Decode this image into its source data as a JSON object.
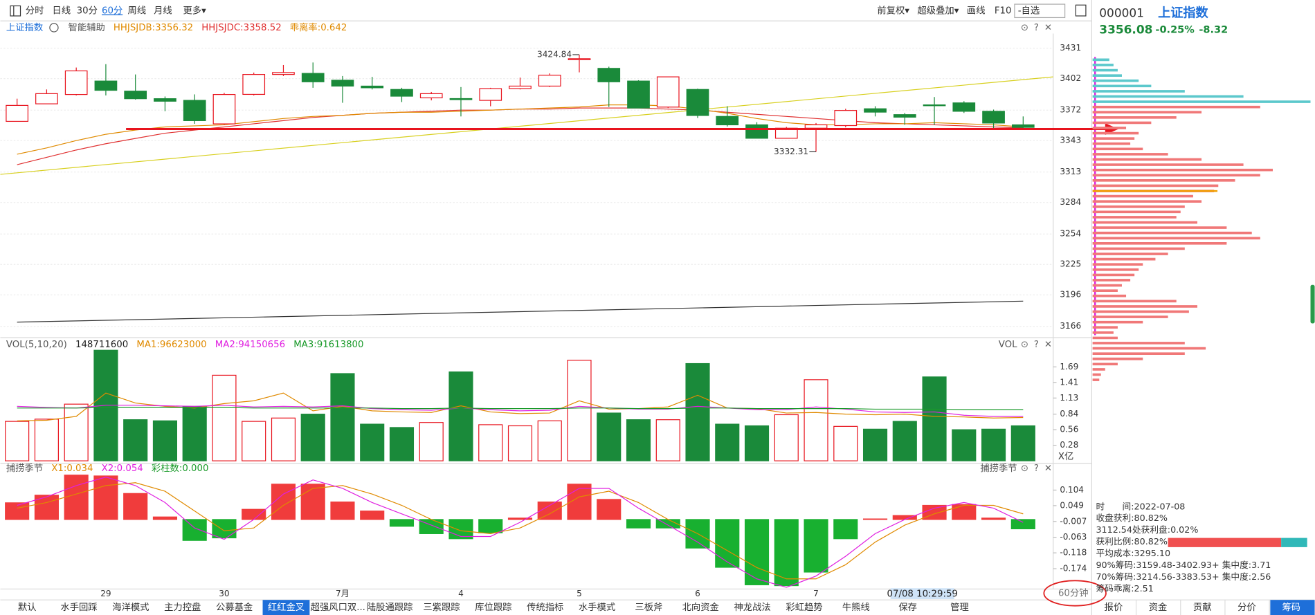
{
  "toolbar": {
    "left": [
      {
        "text": "分时"
      },
      {
        "text": "日线"
      },
      {
        "text": "30分"
      },
      {
        "text": "60分",
        "active": true
      },
      {
        "text": "周线"
      },
      {
        "text": "月线"
      },
      {
        "text": "更多▾"
      }
    ],
    "right": [
      "前复权▾",
      "超级叠加▾",
      "画线",
      "F10",
      "-自选"
    ]
  },
  "chart_data": [
    {
      "type": "candlestick",
      "header": [
        {
          "text": "上证指数",
          "color": "#1e6fd9"
        },
        {
          "text": "智能辅助",
          "color": "#555555"
        },
        {
          "text": "HHJSJDB:3356.32",
          "color": "#e08a00"
        },
        {
          "text": "HHJSJDC:3358.52",
          "color": "#e03030"
        },
        {
          "text": "乖离率:0.642",
          "color": "#e08a00"
        }
      ],
      "categories": [
        null,
        null,
        null,
        "29",
        null,
        null,
        null,
        "30",
        null,
        null,
        null,
        "7月",
        null,
        null,
        null,
        "4",
        null,
        null,
        null,
        "5",
        null,
        null,
        null,
        "6",
        null,
        null,
        null,
        "7",
        null,
        null,
        null,
        null,
        null,
        null,
        null
      ],
      "cursor_label": "07/08 10:29:59",
      "up_color": "#e8141e",
      "down_color": "#1a8a3a",
      "candles": [
        {
          "o": 3361.3,
          "h": 3382.9,
          "l": 3361,
          "c": 3376.5
        },
        {
          "o": 3378,
          "h": 3391.7,
          "l": 3378,
          "c": 3387.7
        },
        {
          "o": 3386.9,
          "h": 3412.6,
          "l": 3386,
          "c": 3409.4
        },
        {
          "o": 3399.7,
          "h": 3415.8,
          "l": 3386,
          "c": 3390.9
        },
        {
          "o": 3390.1,
          "h": 3406,
          "l": 3382,
          "c": 3382.9
        },
        {
          "o": 3382.9,
          "h": 3385,
          "l": 3371,
          "c": 3380.5
        },
        {
          "o": 3381.3,
          "h": 3387,
          "l": 3359,
          "c": 3362
        },
        {
          "o": 3358.9,
          "h": 3388.5,
          "l": 3358,
          "c": 3386.9
        },
        {
          "o": 3387,
          "h": 3407.8,
          "l": 3386,
          "c": 3406
        },
        {
          "o": 3406,
          "h": 3415,
          "l": 3404.5,
          "c": 3407.8
        },
        {
          "o": 3407,
          "h": 3417.4,
          "l": 3393.3,
          "c": 3399
        },
        {
          "o": 3400.5,
          "h": 3404.5,
          "l": 3379,
          "c": 3394.9
        },
        {
          "o": 3394.9,
          "h": 3403.7,
          "l": 3391.7,
          "c": 3393.3
        },
        {
          "o": 3391.7,
          "h": 3393.3,
          "l": 3379.7,
          "c": 3385.3
        },
        {
          "o": 3383.7,
          "h": 3389.3,
          "l": 3381.3,
          "c": 3387.7
        },
        {
          "o": 3383,
          "h": 3394,
          "l": 3366,
          "c": 3382
        },
        {
          "o": 3381.3,
          "h": 3393.3,
          "l": 3375.7,
          "c": 3392.5
        },
        {
          "o": 3392.5,
          "h": 3403,
          "l": 3391.7,
          "c": 3394.9
        },
        {
          "o": 3394.9,
          "h": 3407,
          "l": 3394,
          "c": 3405.3
        },
        {
          "o": 3420,
          "h": 3424.84,
          "l": 3408,
          "c": 3421
        },
        {
          "o": 3411.8,
          "h": 3413.4,
          "l": 3375,
          "c": 3399
        },
        {
          "o": 3399.7,
          "h": 3400.5,
          "l": 3374,
          "c": 3374
        },
        {
          "o": 3374.9,
          "h": 3404,
          "l": 3374,
          "c": 3403.7
        },
        {
          "o": 3391.7,
          "h": 3392.5,
          "l": 3364.5,
          "c": 3366.9
        },
        {
          "o": 3366,
          "h": 3375.7,
          "l": 3356.4,
          "c": 3358
        },
        {
          "o": 3358,
          "h": 3360.5,
          "l": 3345.2,
          "c": 3345.2
        },
        {
          "o": 3345.2,
          "h": 3356,
          "l": 3345,
          "c": 3354.8
        },
        {
          "o": 3354.8,
          "h": 3359.7,
          "l": 3332.31,
          "c": 3358
        },
        {
          "o": 3357.3,
          "h": 3373.3,
          "l": 3355.6,
          "c": 3371.7
        },
        {
          "o": 3373.3,
          "h": 3375.7,
          "l": 3366,
          "c": 3370.1
        },
        {
          "o": 3367.7,
          "h": 3369.3,
          "l": 3358,
          "c": 3365.3
        },
        {
          "o": 3377,
          "h": 3384.5,
          "l": 3358,
          "c": 3376.5
        },
        {
          "o": 3378.9,
          "h": 3380.5,
          "l": 3369.3,
          "c": 3370.9
        },
        {
          "o": 3370.9,
          "h": 3372.5,
          "l": 3354.8,
          "c": 3359.7
        },
        {
          "o": 3358,
          "h": 3366,
          "l": 3354,
          "c": 3355.6
        }
      ],
      "series": [
        {
          "color": "#e03030",
          "values": [
            3320,
            3327,
            3334,
            3340,
            3345,
            3350,
            3353,
            3356,
            3359,
            3362,
            3365,
            3367,
            3369,
            3370,
            3371,
            3372,
            3372,
            3373,
            3373,
            3374,
            3374,
            3374,
            3373,
            3372,
            3370,
            3368,
            3366,
            3364,
            3362,
            3360,
            3359,
            3358,
            3357,
            3356,
            3355
          ]
        },
        {
          "color": "#e08a00",
          "values": [
            3330,
            3336,
            3343,
            3349,
            3353,
            3356,
            3357,
            3358,
            3361,
            3364,
            3366,
            3367,
            3369,
            3370,
            3370,
            3371,
            3372,
            3373,
            3374,
            3375,
            3377,
            3377,
            3376,
            3373,
            3369,
            3364,
            3360,
            3358,
            3358,
            3359,
            3359,
            3360,
            3359,
            3358,
            3356
          ]
        }
      ],
      "trendlines": [
        {
          "color": "#d8d020",
          "values": [
            3310.8,
            3403.7
          ],
          "span": "panel"
        },
        {
          "color": "#333333",
          "values": [
            3170,
            3190
          ],
          "span": "candles"
        }
      ],
      "price_line": {
        "value": 3354,
        "color": "#e8141e"
      },
      "ylim": [
        3156,
        3445
      ],
      "yticks": [
        3431,
        3402,
        3372,
        3343,
        3313,
        3284,
        3254,
        3225,
        3196,
        3166
      ],
      "grid": true
    },
    {
      "type": "bar",
      "header": [
        {
          "text": "VOL(5,10,20)",
          "color": "#555555"
        },
        {
          "text": "148711600",
          "color": "#222222"
        },
        {
          "text": "MA1:96623000",
          "color": "#e08a00"
        },
        {
          "text": "MA2:94150656",
          "color": "#e020e0"
        },
        {
          "text": "MA3:91613800",
          "color": "#1a9a2a"
        }
      ],
      "side_label": "VOL",
      "unit": "X亿",
      "color_by": "candles",
      "values": [
        0.71,
        0.75,
        1.02,
        1.99,
        0.74,
        0.72,
        0.98,
        1.54,
        0.71,
        0.77,
        0.84,
        1.57,
        0.66,
        0.6,
        0.69,
        1.6,
        0.65,
        0.63,
        0.72,
        1.81,
        0.86,
        0.74,
        0.74,
        1.75,
        0.66,
        0.63,
        0.83,
        1.46,
        0.62,
        0.57,
        0.71,
        1.51,
        0.56,
        0.57,
        0.63
      ],
      "series": [
        {
          "color": "#e08a00",
          "values": [
            0.72,
            0.73,
            0.8,
            1.22,
            1.04,
            0.98,
            0.95,
            1.03,
            1.08,
            1.22,
            0.9,
            0.98,
            0.9,
            0.88,
            0.87,
            0.99,
            0.88,
            0.85,
            0.86,
            1.08,
            0.93,
            0.94,
            0.97,
            1.18,
            0.95,
            0.94,
            0.86,
            0.87,
            0.84,
            0.83,
            0.84,
            0.8,
            0.79,
            0.77,
            0.78
          ]
        },
        {
          "color": "#e020e0",
          "values": [
            0.98,
            0.96,
            0.95,
            1,
            1,
            0.99,
            0.98,
            1,
            0.97,
            0.98,
            0.97,
            0.99,
            0.94,
            0.92,
            0.91,
            0.95,
            0.92,
            0.9,
            0.91,
            0.98,
            0.95,
            0.93,
            0.93,
            0.98,
            0.95,
            0.92,
            0.92,
            0.97,
            0.93,
            0.88,
            0.87,
            0.88,
            0.82,
            0.8,
            0.8
          ]
        },
        {
          "color": "#1a9a2a",
          "values": [
            0.95,
            0.95,
            0.95,
            0.96,
            0.96,
            0.96,
            0.96,
            0.96,
            0.95,
            0.95,
            0.95,
            0.95,
            0.95,
            0.94,
            0.94,
            0.95,
            0.94,
            0.94,
            0.94,
            0.95,
            0.95,
            0.94,
            0.94,
            0.95,
            0.95,
            0.94,
            0.94,
            0.94,
            0.94,
            0.93,
            0.93,
            0.93,
            0.92,
            0.92,
            0.92
          ]
        }
      ],
      "ylim": [
        0,
        1.99
      ],
      "yticks": [
        1.69,
        1.41,
        1.13,
        0.84,
        0.56,
        0.28
      ]
    },
    {
      "type": "bar",
      "header": [
        {
          "text": "捕捞季节",
          "color": "#555555"
        },
        {
          "text": "X1:0.034",
          "color": "#e08a00"
        },
        {
          "text": "X2:0.054",
          "color": "#e020e0"
        },
        {
          "text": "彩柱数:0.000",
          "color": "#1a9a2a"
        }
      ],
      "side_label": "捕捞季节",
      "color_by": "sign",
      "up_color": "#f03c3c",
      "down_color": "#18b030",
      "values": [
        0.059,
        0.086,
        0.157,
        0.154,
        0.092,
        0.009,
        -0.074,
        -0.065,
        0.036,
        0.125,
        0.125,
        0.062,
        0.03,
        -0.024,
        -0.05,
        -0.068,
        -0.047,
        0.005,
        0.062,
        0.125,
        0.071,
        -0.03,
        -0.03,
        -0.101,
        -0.169,
        -0.231,
        -0.234,
        -0.186,
        -0.068,
        0.002,
        0.014,
        0.05,
        0.053,
        0.005,
        -0.033
      ],
      "series": [
        {
          "color": "#e08a00",
          "values": [
            0.04,
            0.06,
            0.09,
            0.12,
            0.13,
            0.1,
            0.03,
            -0.04,
            -0.03,
            0.05,
            0.11,
            0.12,
            0.09,
            0.05,
            0,
            -0.04,
            -0.05,
            -0.03,
            0.02,
            0.08,
            0.1,
            0.06,
            0,
            -0.05,
            -0.11,
            -0.17,
            -0.21,
            -0.21,
            -0.16,
            -0.08,
            -0.02,
            0.02,
            0.05,
            0.05,
            0.02
          ]
        },
        {
          "color": "#e020e0",
          "values": [
            0.05,
            0.08,
            0.12,
            0.15,
            0.12,
            0.06,
            -0.03,
            -0.07,
            0,
            0.09,
            0.14,
            0.11,
            0.06,
            0.02,
            -0.02,
            -0.06,
            -0.06,
            -0.01,
            0.05,
            0.11,
            0.11,
            0.04,
            -0.02,
            -0.08,
            -0.15,
            -0.21,
            -0.24,
            -0.2,
            -0.13,
            -0.05,
            0,
            0.04,
            0.06,
            0.04,
            -0.01
          ]
        }
      ],
      "ylim": [
        -0.24,
        0.163
      ],
      "yticks": [
        0.104,
        0.049,
        -0.007,
        -0.063,
        -0.118,
        -0.174
      ]
    }
  ],
  "chips": {
    "series": [
      {
        "color": "#5cc8cc",
        "prices": [
          3420,
          3415,
          3410,
          3405,
          3400,
          3395,
          3390,
          3385,
          3380
        ],
        "values": [
          20,
          25,
          30,
          35,
          55,
          70,
          110,
          180,
          260
        ]
      },
      {
        "color": "#f07878",
        "prices": [
          3375,
          3370,
          3365,
          3360,
          3355,
          3350,
          3345,
          3340,
          3335,
          3330,
          3325,
          3320,
          3315,
          3310,
          3305,
          3300,
          3295,
          3290,
          3285,
          3280,
          3275,
          3270,
          3265,
          3260,
          3255,
          3250,
          3245,
          3240,
          3235,
          3230,
          3225,
          3220,
          3215,
          3210,
          3205,
          3200,
          3195,
          3190,
          3185,
          3180,
          3175,
          3170,
          3165,
          3160,
          3155,
          3150,
          3145,
          3140,
          3135,
          3130,
          3125,
          3120,
          3115
        ],
        "values": [
          200,
          130,
          100,
          70,
          40,
          55,
          50,
          45,
          60,
          90,
          130,
          180,
          215,
          200,
          170,
          150,
          145,
          120,
          130,
          110,
          105,
          100,
          125,
          160,
          190,
          200,
          160,
          110,
          90,
          75,
          60,
          55,
          50,
          45,
          35,
          30,
          40,
          100,
          125,
          115,
          90,
          60,
          30,
          25,
          30,
          110,
          135,
          110,
          60,
          30,
          15,
          10,
          8
        ]
      }
    ]
  },
  "quote": {
    "code": "000001",
    "name": "上证指数",
    "price": "3356.08",
    "change_pct": "-0.25%",
    "change": "-8.32"
  },
  "info": [
    "时　　间:2022-07-08",
    "收盘获利:80.82%",
    "3112.54处获利盘:0.02%",
    "获利比例:80.82%",
    "平均成本:3295.10",
    "90%筹码:3159.48-3402.93+ 集中度:3.71",
    "70%筹码:3214.56-3383.53+ 集中度:2.56",
    "筹码乖离:2.51"
  ],
  "period_label": "60分钟",
  "tabs": [
    {
      "text": "默认"
    },
    {
      "text": "水手回踩"
    },
    {
      "text": "海洋模式"
    },
    {
      "text": "主力控盘"
    },
    {
      "text": "公募基金"
    },
    {
      "text": "红红金叉",
      "active": true
    },
    {
      "text": "超强风口双..."
    },
    {
      "text": "陆股通跟踪"
    },
    {
      "text": "三紫跟踪"
    },
    {
      "text": "库位跟踪"
    },
    {
      "text": "传统指标"
    },
    {
      "text": "水手模式"
    },
    {
      "text": "三板斧"
    },
    {
      "text": "北向资金"
    },
    {
      "text": "神龙战法"
    },
    {
      "text": "彩虹趋势"
    },
    {
      "text": "牛熊线"
    },
    {
      "text": "保存"
    },
    {
      "text": "管理"
    }
  ],
  "side_tabs": [
    {
      "text": "报价"
    },
    {
      "text": "资金"
    },
    {
      "text": "贡献"
    },
    {
      "text": "分价"
    },
    {
      "text": "筹码",
      "active": true
    }
  ]
}
